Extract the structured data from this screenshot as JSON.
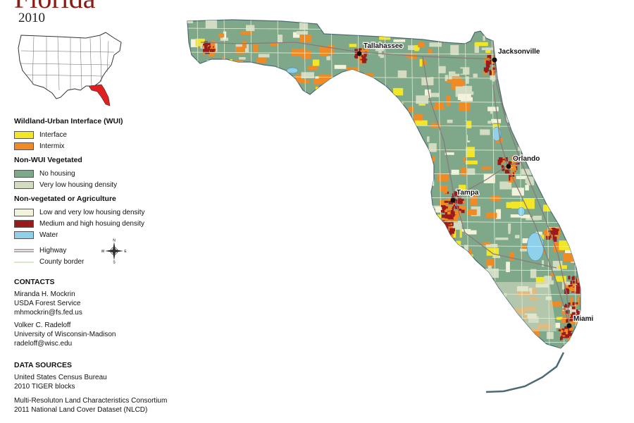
{
  "header": {
    "title": "Florida",
    "year": "2010"
  },
  "legend": {
    "wui_heading": "Wildland-Urban Interface (WUI)",
    "interface": "Interface",
    "intermix": "Intermix",
    "nonwui_heading": "Non-WUI Vegetated",
    "no_housing": "No housing",
    "very_low": "Very low housing density",
    "nonveg_heading": "Non-vegetated or Agriculture",
    "low_very_low": "Low and very low housing density",
    "med_high": "Medium and high hosuing density",
    "water": "Water",
    "highway": "Highway",
    "county_border": "County border",
    "compass": {
      "n": "N",
      "s": "S",
      "e": "E",
      "w": "W"
    }
  },
  "contacts": {
    "heading": "CONTACTS",
    "person1": {
      "name": "Miranda H. Mockrin",
      "org": "USDA Forest Service",
      "email": "mhmockrin@fs.fed.us"
    },
    "person2": {
      "name": "Volker C. Radeloff",
      "org": "University of Wisconsin-Madison",
      "email": "radeloff@wisc.edu"
    }
  },
  "sources": {
    "heading": "DATA SOURCES",
    "line1": "United States Census Bureau",
    "line2": "2010 TIGER blocks",
    "line3": "Multi-Resoluton Land Characteristics Consortium",
    "line4": "2011 National Land Cover Dataset (NLCD)"
  },
  "cities": {
    "tallahassee": "Tallahassee",
    "jacksonville": "Jacksonville",
    "orlando": "Orlando",
    "tampa": "Tampa",
    "miami": "Miami"
  },
  "colors": {
    "interface": "#f2e626",
    "intermix": "#f08a24",
    "no_housing": "#7fa88a",
    "very_low": "#d3dcc2",
    "low_very_low": "#f3f3dc",
    "med_high": "#9b1b1b",
    "water": "#8fd0ea",
    "highlight_state": "#e02020"
  }
}
